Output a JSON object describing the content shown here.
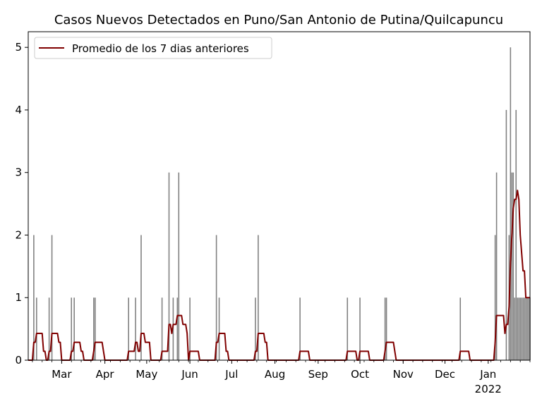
{
  "chart_data": {
    "type": "bar",
    "title": "Casos Nuevos Detectados en Puno/San Antonio de Putina/Quilcapuncu",
    "xlabel": "",
    "ylabel": "",
    "x_range": [
      "2021-02-05",
      "2022-01-31"
    ],
    "ylim": [
      0,
      5.25
    ],
    "y_ticks": [
      0,
      1,
      2,
      3,
      4,
      5
    ],
    "x_ticks": [
      {
        "date": "2021-03-01",
        "label": "Mar"
      },
      {
        "date": "2021-04-01",
        "label": "Apr"
      },
      {
        "date": "2021-05-01",
        "label": "May"
      },
      {
        "date": "2021-06-01",
        "label": "Jun"
      },
      {
        "date": "2021-07-01",
        "label": "Jul"
      },
      {
        "date": "2021-08-01",
        "label": "Aug"
      },
      {
        "date": "2021-09-01",
        "label": "Sep"
      },
      {
        "date": "2021-10-01",
        "label": "Oct"
      },
      {
        "date": "2021-11-01",
        "label": "Nov"
      },
      {
        "date": "2021-12-01",
        "label": "Dec"
      },
      {
        "date": "2022-01-01",
        "label": "Jan",
        "sublabel": "2022"
      }
    ],
    "grid": false,
    "legend_position": "top-left",
    "bar_color": "#808080",
    "line_color": "#800000",
    "series": [
      {
        "type": "bar",
        "points": [
          [
            "2021-02-09",
            2
          ],
          [
            "2021-02-11",
            1
          ],
          [
            "2021-02-20",
            1
          ],
          [
            "2021-02-22",
            2
          ],
          [
            "2021-03-08",
            1
          ],
          [
            "2021-03-10",
            1
          ],
          [
            "2021-03-24",
            1
          ],
          [
            "2021-03-25",
            1
          ],
          [
            "2021-04-18",
            1
          ],
          [
            "2021-04-23",
            1
          ],
          [
            "2021-04-27",
            2
          ],
          [
            "2021-05-12",
            1
          ],
          [
            "2021-05-17",
            3
          ],
          [
            "2021-05-20",
            1
          ],
          [
            "2021-05-23",
            1
          ],
          [
            "2021-05-24",
            3
          ],
          [
            "2021-06-01",
            1
          ],
          [
            "2021-06-20",
            2
          ],
          [
            "2021-06-22",
            1
          ],
          [
            "2021-07-18",
            1
          ],
          [
            "2021-07-20",
            2
          ],
          [
            "2021-08-19",
            1
          ],
          [
            "2021-09-22",
            1
          ],
          [
            "2021-10-01",
            1
          ],
          [
            "2021-10-19",
            1
          ],
          [
            "2021-10-20",
            1
          ],
          [
            "2021-12-12",
            1
          ],
          [
            "2022-01-06",
            2
          ],
          [
            "2022-01-07",
            3
          ],
          [
            "2022-01-14",
            4
          ],
          [
            "2022-01-16",
            2
          ],
          [
            "2022-01-17",
            5
          ],
          [
            "2022-01-18",
            3
          ],
          [
            "2022-01-19",
            3
          ],
          [
            "2022-01-20",
            1
          ],
          [
            "2022-01-21",
            4
          ],
          [
            "2022-01-22",
            1
          ],
          [
            "2022-01-23",
            1
          ],
          [
            "2022-01-24",
            1
          ],
          [
            "2022-01-25",
            1
          ],
          [
            "2022-01-26",
            1
          ],
          [
            "2022-01-27",
            1
          ],
          [
            "2022-01-28",
            1
          ],
          [
            "2022-01-29",
            1
          ],
          [
            "2022-01-30",
            1
          ],
          [
            "2022-01-31",
            1
          ]
        ]
      },
      {
        "type": "line",
        "name": "Promedio de los 7 dias anteriores"
      }
    ]
  }
}
